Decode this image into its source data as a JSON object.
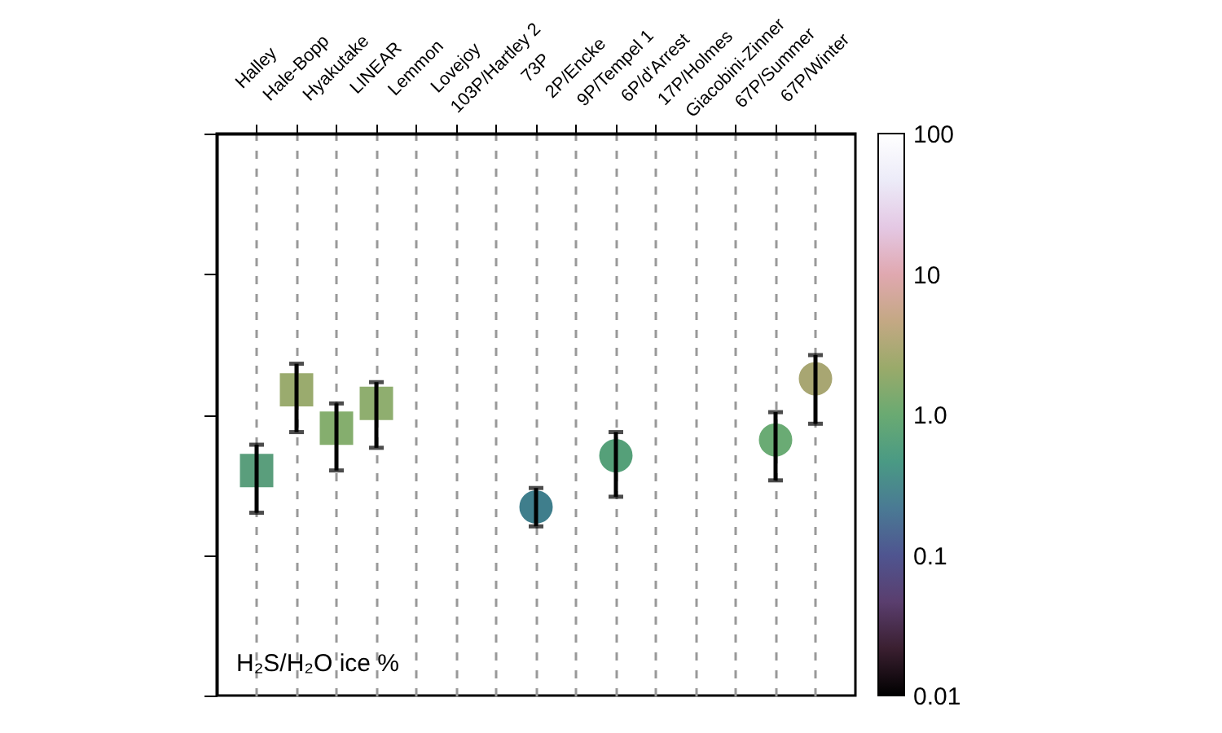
{
  "chart_data": {
    "type": "scatter",
    "categories": [
      "Halley",
      "Hale-Bopp",
      "Hyakutake",
      "LINEAR",
      "Lemmon",
      "Lovejoy",
      "103P/Hartley 2",
      "73P",
      "2P/Encke",
      "9P/Tempel 1",
      "6P/d'Arrest",
      "17P/Holmes",
      "Giacobini-Zinner",
      "67P/Summer",
      "67P/Winter"
    ],
    "series": [
      {
        "marker": "square",
        "values": [
          0.4,
          1.5,
          0.8,
          1.2,
          null,
          null,
          null,
          null,
          null,
          null,
          null,
          null,
          null,
          null,
          null
        ],
        "colors": [
          "#5a9e7c",
          "#9aab6e",
          "#85ae6e",
          "#8fae6f",
          null,
          null,
          null,
          null,
          null,
          null,
          null,
          null,
          null,
          null,
          null
        ],
        "errors": [
          [
            0.2,
            0.61
          ],
          [
            0.75,
            2.3
          ],
          [
            0.4,
            1.2
          ],
          [
            0.58,
            1.7
          ],
          null,
          null,
          null,
          null,
          null,
          null,
          null,
          null,
          null,
          null,
          null
        ]
      },
      {
        "marker": "circle",
        "values": [
          null,
          null,
          null,
          null,
          null,
          null,
          null,
          0.22,
          null,
          0.51,
          null,
          null,
          null,
          0.66,
          1.8
        ],
        "colors": [
          null,
          null,
          null,
          null,
          null,
          null,
          null,
          "#3f7e8c",
          null,
          "#55a079",
          null,
          null,
          null,
          "#6aab74",
          "#a8a672"
        ],
        "errors": [
          null,
          null,
          null,
          null,
          null,
          null,
          null,
          [
            0.16,
            0.3
          ],
          null,
          [
            0.26,
            0.75
          ],
          null,
          null,
          null,
          [
            0.34,
            1.04
          ],
          [
            0.86,
            2.65
          ]
        ]
      }
    ],
    "log": "y",
    "ylim": [
      0.01,
      100
    ],
    "yticks": [
      {
        "value": 0.01,
        "label": "0.01"
      },
      {
        "value": 0.1,
        "label": "0.1"
      },
      {
        "value": 1,
        "label": "1.0"
      },
      {
        "value": 10,
        "label": "10"
      },
      {
        "value": 100,
        "label": "100"
      }
    ],
    "grid": "x",
    "annotations": [
      "H₂S/H₂O ice %"
    ]
  }
}
